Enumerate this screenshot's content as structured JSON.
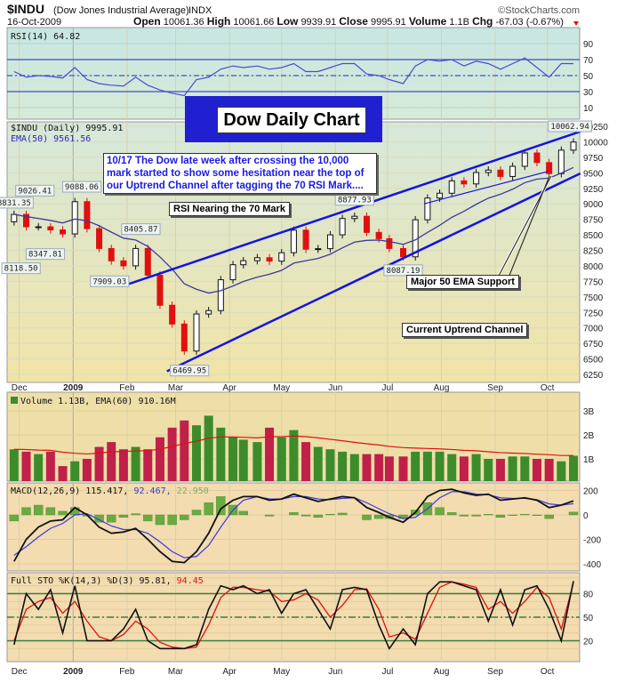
{
  "header": {
    "symbol": "$INDU",
    "name": "(Dow Jones Industrial Average)",
    "exchange": "INDX",
    "source": "©StockCharts.com",
    "date": "16-Oct-2009",
    "open_label": "Open",
    "open": "10061.36",
    "high_label": "High",
    "high": "10061.66",
    "low_label": "Low",
    "low": "9939.91",
    "close_label": "Close",
    "close": "9995.91",
    "volume_label": "Volume",
    "volume": "1.1B",
    "chg_label": "Chg",
    "chg": "-67.03 (-0.67%)"
  },
  "annotations": {
    "title": "Dow Daily Chart",
    "comment": "10/17  The Dow late week after crossing the 10,000 mark started to show some hesitation near the top of our Uptrend Channel after tagging the 70 RSI Mark....",
    "rsi_note": "RSI Nearing the 70 Mark",
    "ema_note": "Major 50 EMA Support",
    "channel_note": "Current Uptrend Channel"
  },
  "colors": {
    "up": "#111111",
    "down": "#e01010",
    "ema": "#3a3a9a",
    "channel": "#1414e0",
    "vol_up": "#3c8c2c",
    "vol_down": "#c0204a",
    "vol_ema": "#e01010",
    "macd": "#111111",
    "signal": "#3a3ae0",
    "hist": "#6aaa40",
    "k": "#111111",
    "d": "#e01010"
  },
  "chart_data": [
    {
      "type": "line",
      "title": "RSI(14) 64.82",
      "ylim": [
        0,
        100
      ],
      "yticks": [
        "90",
        "70",
        "50",
        "30",
        "10"
      ],
      "reference_lines": [
        70,
        50,
        30
      ],
      "values": [
        55,
        48,
        50,
        49,
        47,
        60,
        45,
        40,
        38,
        37,
        48,
        38,
        32,
        28,
        25,
        45,
        48,
        58,
        62,
        60,
        62,
        58,
        60,
        65,
        55,
        55,
        60,
        65,
        65,
        52,
        50,
        45,
        40,
        62,
        70,
        68,
        70,
        62,
        68,
        65,
        58,
        65,
        72,
        60,
        48,
        65,
        65
      ]
    },
    {
      "type": "candlestick",
      "legend": [
        "$INDU (Daily) 9995.91",
        "EMA(50) 9561.56"
      ],
      "ylim": [
        6250,
        10250
      ],
      "yticks": [
        "10250",
        "10000",
        "9750",
        "9500",
        "9250",
        "9000",
        "8750",
        "8500",
        "8250",
        "8000",
        "7750",
        "7500",
        "7250",
        "7000",
        "6750",
        "6500",
        "6250"
      ],
      "xticks": [
        "Dec",
        "2009",
        "Feb",
        "Mar",
        "Apr",
        "May",
        "Jun",
        "Jul",
        "Aug",
        "Sep",
        "Oct"
      ],
      "xtick_dates": [
        "2008-12-01",
        "2009-01-01",
        "2009-02-01",
        "2009-03-01",
        "2009-04-01",
        "2009-05-01",
        "2009-06-01",
        "2009-07-01",
        "2009-08-01",
        "2009-09-01",
        "2009-10-01"
      ],
      "dates": [
        "2008-11-28",
        "2008-12-05",
        "2008-12-12",
        "2008-12-19",
        "2008-12-26",
        "2009-01-02",
        "2009-01-09",
        "2009-01-16",
        "2009-01-23",
        "2009-01-30",
        "2009-02-06",
        "2009-02-13",
        "2009-02-20",
        "2009-02-27",
        "2009-03-06",
        "2009-03-13",
        "2009-03-20",
        "2009-03-27",
        "2009-04-03",
        "2009-04-09",
        "2009-04-17",
        "2009-04-24",
        "2009-05-01",
        "2009-05-08",
        "2009-05-15",
        "2009-05-22",
        "2009-05-29",
        "2009-06-05",
        "2009-06-12",
        "2009-06-19",
        "2009-06-26",
        "2009-07-02",
        "2009-07-10",
        "2009-07-17",
        "2009-07-24",
        "2009-07-31",
        "2009-08-07",
        "2009-08-14",
        "2009-08-21",
        "2009-08-28",
        "2009-09-04",
        "2009-09-11",
        "2009-09-18",
        "2009-09-25",
        "2009-10-02",
        "2009-10-09",
        "2009-10-16"
      ],
      "close": [
        8830,
        8630,
        8630,
        8580,
        8515,
        9035,
        8600,
        8280,
        8080,
        8000,
        8280,
        7850,
        7365,
        7062,
        6627,
        7224,
        7279,
        7776,
        8018,
        8083,
        8131,
        8076,
        8212,
        8575,
        8268,
        8277,
        8500,
        8763,
        8799,
        8539,
        8438,
        8280,
        8146,
        8743,
        9093,
        9171,
        9370,
        9321,
        9505,
        9544,
        9441,
        9605,
        9820,
        9665,
        9487,
        9865,
        9996
      ],
      "price_labels": [
        {
          "text": "8831.35",
          "date": "2008-11-28",
          "price": 8831.35,
          "pos": "above"
        },
        {
          "text": "9026.41",
          "date": "2008-12-10",
          "price": 9026.41,
          "pos": "above"
        },
        {
          "text": "9088.06",
          "date": "2009-01-06",
          "price": 9088.06,
          "pos": "above"
        },
        {
          "text": "8347.81",
          "date": "2008-12-16",
          "price": 8347.81,
          "pos": "below"
        },
        {
          "text": "8118.50",
          "date": "2008-12-02",
          "price": 8118.5,
          "pos": "below"
        },
        {
          "text": "8405.87",
          "date": "2009-02-09",
          "price": 8405.87,
          "pos": "above"
        },
        {
          "text": "7909.03",
          "date": "2009-01-22",
          "price": 7909.03,
          "pos": "below"
        },
        {
          "text": "6469.95",
          "date": "2009-03-09",
          "price": 6469.95,
          "pos": "below"
        },
        {
          "text": "8877.93",
          "date": "2009-06-12",
          "price": 8877.93,
          "pos": "above"
        },
        {
          "text": "8087.19",
          "date": "2009-07-10",
          "price": 8087.19,
          "pos": "below"
        },
        {
          "text": "10062.94",
          "date": "2009-10-14",
          "price": 10062.94,
          "pos": "above"
        }
      ],
      "trendlines": [
        {
          "from": [
            "2009-01-29",
            7670
          ],
          "to": [
            "2009-10-20",
            10165
          ]
        },
        {
          "from": [
            "2009-02-24",
            6300
          ],
          "to": [
            "2009-10-20",
            9490
          ]
        },
        {
          "from": [
            "2009-07-22",
            9000
          ],
          "to": [
            "2009-10-01",
            9520
          ]
        }
      ]
    },
    {
      "type": "bar",
      "legend": "Volume 1.13B, EMA(60) 910.16M",
      "yticks": [
        "3B",
        "2B",
        "1B"
      ],
      "values_billions": [
        1.4,
        1.3,
        1.2,
        1.3,
        0.7,
        0.9,
        1.0,
        1.5,
        1.7,
        1.4,
        1.5,
        1.4,
        1.9,
        2.3,
        2.6,
        2.4,
        2.8,
        2.3,
        1.9,
        1.8,
        1.7,
        2.3,
        1.9,
        2.2,
        1.7,
        1.5,
        1.4,
        1.3,
        1.2,
        1.2,
        1.2,
        1.1,
        1.1,
        1.3,
        1.3,
        1.3,
        1.2,
        1.1,
        1.2,
        1.0,
        1.0,
        1.1,
        1.1,
        1.0,
        1.0,
        0.9,
        1.13
      ]
    },
    {
      "type": "line",
      "legend": [
        "MACD(12,26,9) 115.417,",
        "92.467,",
        "22.950"
      ],
      "yticks": [
        "200",
        "0",
        "-200",
        "-400"
      ],
      "macd": [
        -380,
        -200,
        -100,
        -50,
        -40,
        60,
        0,
        -100,
        -150,
        -140,
        -110,
        -200,
        -300,
        -380,
        -390,
        -300,
        -150,
        50,
        120,
        150,
        150,
        120,
        130,
        170,
        140,
        110,
        130,
        150,
        140,
        60,
        20,
        -20,
        -60,
        20,
        150,
        200,
        210,
        180,
        160,
        170,
        120,
        130,
        140,
        120,
        60,
        80,
        115
      ],
      "signal": [
        -330,
        -260,
        -180,
        -110,
        -70,
        0,
        10,
        -40,
        -90,
        -120,
        -120,
        -150,
        -220,
        -300,
        -350,
        -340,
        -250,
        -100,
        40,
        120,
        150,
        130,
        130,
        150,
        150,
        130,
        125,
        135,
        140,
        100,
        50,
        10,
        -30,
        -20,
        50,
        140,
        190,
        190,
        170,
        165,
        140,
        135,
        135,
        125,
        90,
        80,
        92
      ]
    },
    {
      "type": "line",
      "legend": [
        "Full STO %K(14,3) %D(3) 95.81,",
        "94.45"
      ],
      "yticks": [
        "80",
        "50",
        "20"
      ],
      "reference_lines": [
        80,
        50,
        20
      ],
      "k": [
        15,
        80,
        60,
        85,
        30,
        90,
        20,
        20,
        20,
        35,
        60,
        20,
        10,
        10,
        10,
        15,
        60,
        90,
        85,
        90,
        80,
        85,
        55,
        80,
        85,
        60,
        35,
        85,
        88,
        85,
        40,
        10,
        35,
        15,
        80,
        95,
        95,
        90,
        85,
        45,
        85,
        40,
        85,
        90,
        60,
        20,
        96
      ],
      "d": [
        20,
        60,
        70,
        75,
        55,
        70,
        45,
        25,
        20,
        28,
        45,
        35,
        18,
        12,
        10,
        12,
        40,
        75,
        88,
        88,
        85,
        83,
        70,
        72,
        80,
        72,
        50,
        65,
        85,
        86,
        60,
        25,
        30,
        22,
        55,
        88,
        95,
        92,
        88,
        60,
        70,
        55,
        70,
        88,
        75,
        35,
        94
      ]
    }
  ]
}
